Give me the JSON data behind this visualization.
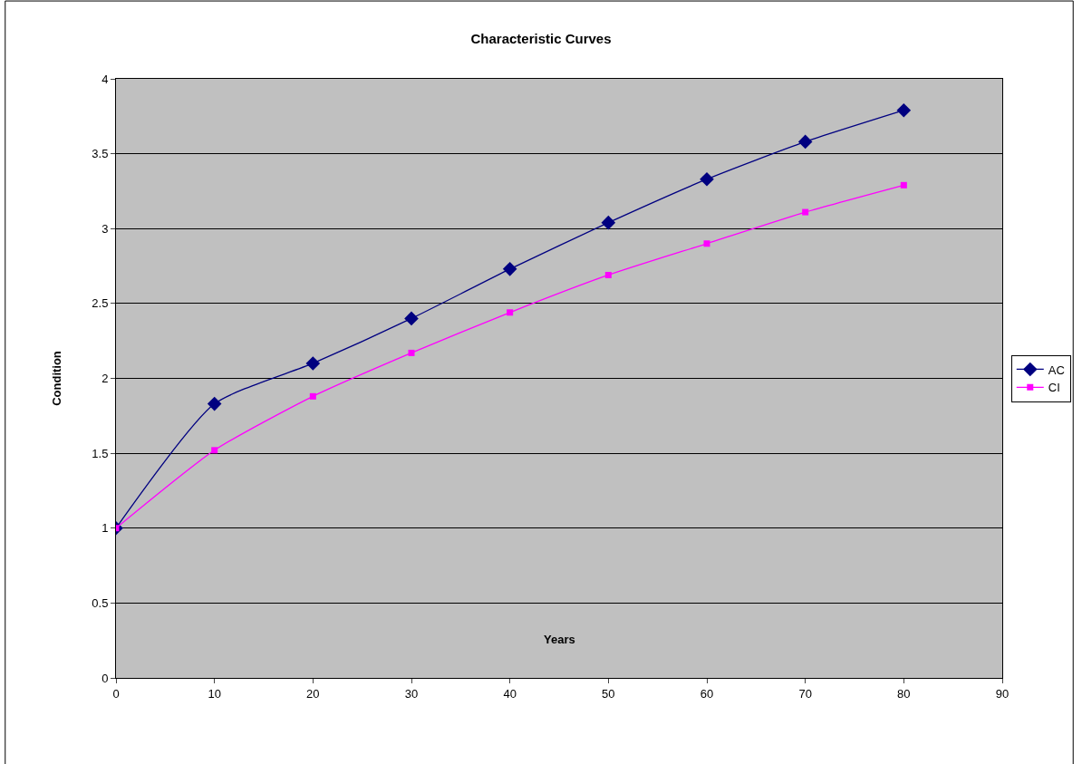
{
  "chart_data": {
    "type": "line",
    "title": "Characteristic Curves",
    "xlabel": "Years",
    "ylabel": "Condition",
    "x": [
      0,
      10,
      20,
      30,
      40,
      50,
      60,
      70,
      80
    ],
    "series": [
      {
        "name": "AC",
        "color": "#000080",
        "marker": "diamond",
        "values": [
          1,
          1.83,
          2.1,
          2.4,
          2.73,
          3.04,
          3.33,
          3.58,
          3.79
        ]
      },
      {
        "name": "CI",
        "color": "#ff00ff",
        "marker": "square",
        "values": [
          1,
          1.52,
          1.88,
          2.17,
          2.44,
          2.69,
          2.9,
          3.11,
          3.29
        ]
      }
    ],
    "xlim": [
      0,
      90
    ],
    "xticks": [
      0,
      10,
      20,
      30,
      40,
      50,
      60,
      70,
      80,
      90
    ],
    "ylim": [
      0,
      4
    ],
    "yticks": [
      0,
      0.5,
      1,
      1.5,
      2,
      2.5,
      3,
      3.5,
      4
    ],
    "grid": "y",
    "legend": "right"
  }
}
